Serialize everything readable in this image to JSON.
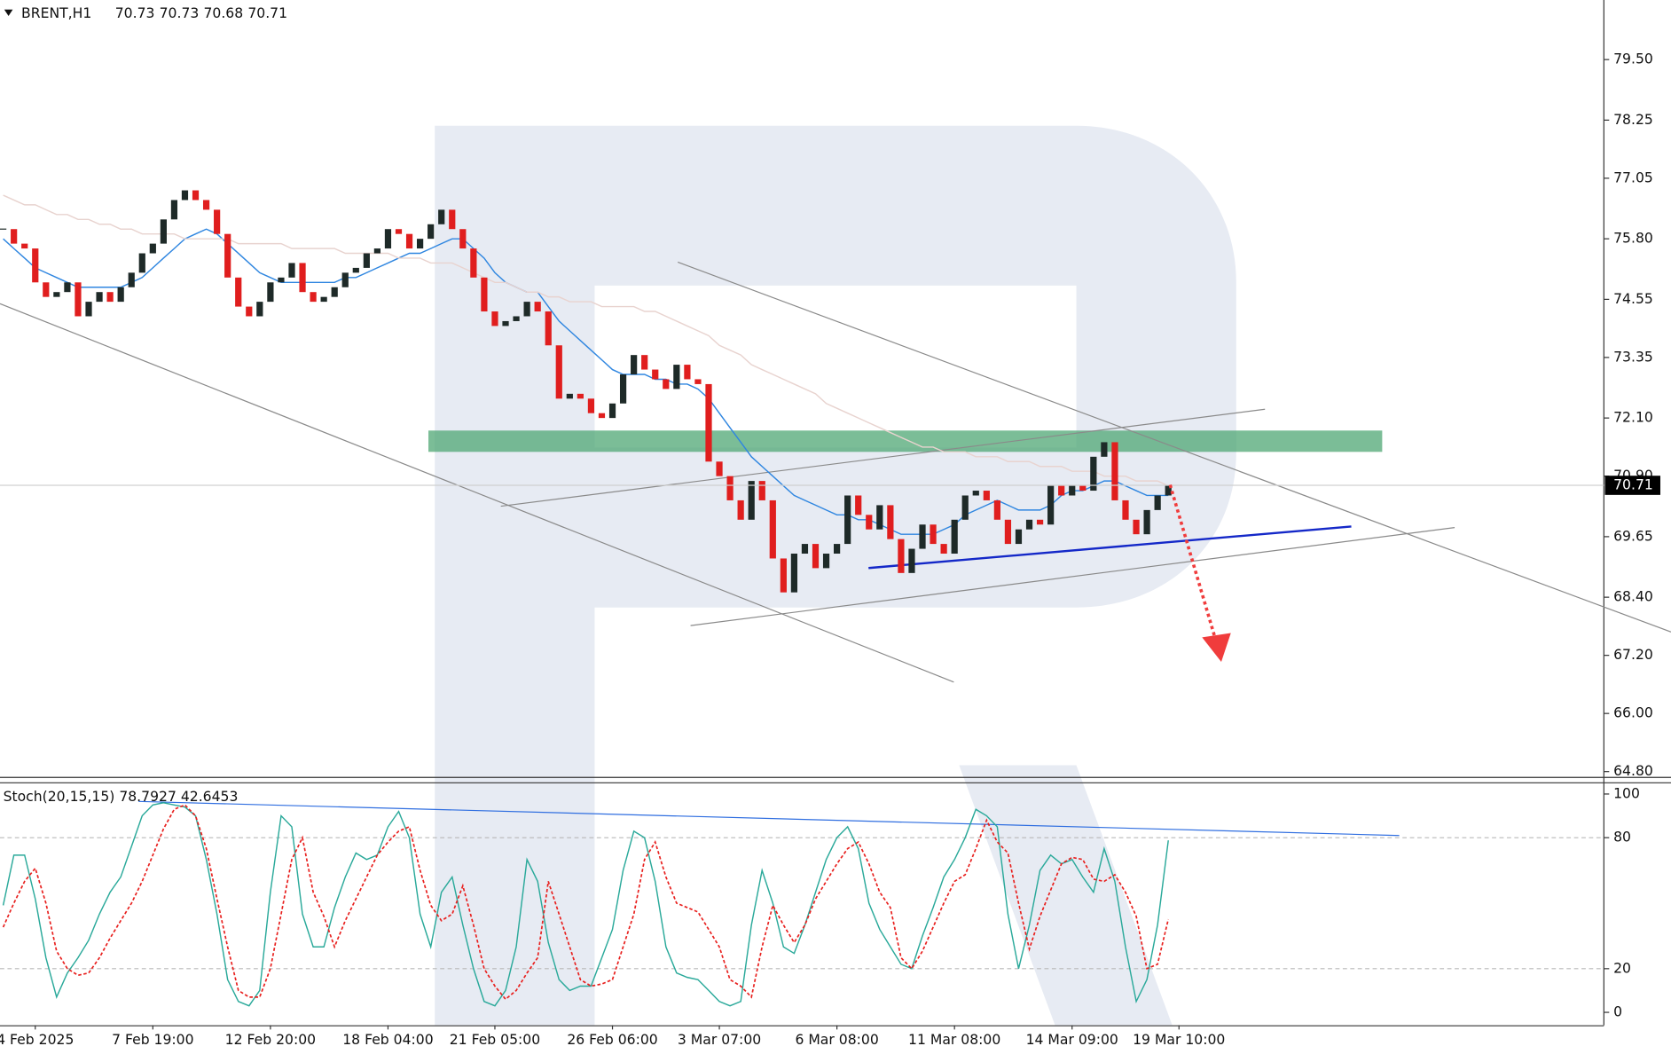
{
  "chart_data": [
    {
      "type": "candlestick",
      "symbol": "BRENT,H1",
      "ohlc": [
        70.73,
        70.73,
        70.68,
        70.71
      ],
      "up_color": "#1e2a28",
      "down_color": "#e01e1e",
      "values": [
        76.0,
        75.7,
        75.6,
        74.9,
        74.6,
        74.7,
        74.9,
        74.2,
        74.5,
        74.7,
        74.5,
        74.8,
        75.1,
        75.5,
        75.7,
        76.2,
        76.6,
        76.8,
        76.6,
        76.4,
        75.9,
        75.0,
        74.4,
        74.2,
        74.5,
        74.9,
        75.0,
        75.3,
        74.7,
        74.5,
        74.6,
        74.8,
        75.1,
        75.2,
        75.5,
        75.6,
        76.0,
        75.9,
        75.6,
        75.8,
        76.1,
        76.4,
        76.0,
        75.6,
        75.0,
        74.3,
        74.0,
        74.1,
        74.2,
        74.5,
        74.3,
        73.6,
        72.5,
        72.6,
        72.5,
        72.2,
        72.1,
        72.4,
        73.0,
        73.4,
        73.1,
        72.9,
        72.7,
        73.2,
        72.9,
        72.8,
        71.2,
        70.9,
        70.4,
        70.0,
        70.8,
        70.4,
        69.2,
        68.5,
        69.3,
        69.5,
        69.0,
        69.3,
        69.5,
        70.5,
        70.1,
        69.8,
        70.3,
        69.6,
        68.9,
        69.4,
        69.9,
        69.5,
        69.3,
        70.0,
        70.5,
        70.6,
        70.4,
        70.0,
        69.5,
        69.8,
        70.0,
        69.9,
        70.7,
        70.5,
        70.7,
        70.6,
        71.3,
        71.6,
        70.4,
        70.0,
        69.7,
        70.2,
        70.5,
        70.71,
        null
      ],
      "lines": [
        {
          "color": "#2f86e0",
          "values": [
            75.8,
            75.6,
            75.4,
            75.2,
            75.1,
            75.0,
            74.9,
            74.8,
            74.8,
            74.8,
            74.8,
            74.8,
            74.9,
            75.0,
            75.2,
            75.4,
            75.6,
            75.8,
            75.9,
            76.0,
            75.9,
            75.7,
            75.5,
            75.3,
            75.1,
            75.0,
            74.9,
            74.9,
            74.9,
            74.9,
            74.9,
            74.9,
            75.0,
            75.0,
            75.1,
            75.2,
            75.3,
            75.4,
            75.5,
            75.5,
            75.6,
            75.7,
            75.8,
            75.8,
            75.6,
            75.4,
            75.1,
            74.9,
            74.8,
            74.7,
            74.7,
            74.4,
            74.1,
            73.9,
            73.7,
            73.5,
            73.3,
            73.1,
            73.0,
            73.0,
            73.0,
            72.9,
            72.9,
            72.8,
            72.8,
            72.7,
            72.5,
            72.2,
            71.9,
            71.6,
            71.3,
            71.1,
            70.9,
            70.7,
            70.5,
            70.4,
            70.3,
            70.2,
            70.1,
            70.1,
            70.0,
            70.0,
            69.9,
            69.8,
            69.7,
            69.7,
            69.7,
            69.7,
            69.8,
            69.9,
            70.1,
            70.2,
            70.3,
            70.4,
            70.3,
            70.2,
            70.2,
            70.2,
            70.3,
            70.5,
            70.6,
            70.6,
            70.7,
            70.8,
            70.8,
            70.7,
            70.6,
            70.5,
            70.5,
            70.5,
            null
          ]
        },
        {
          "color": "#e8d3cf",
          "values": [
            76.7,
            76.6,
            76.5,
            76.5,
            76.4,
            76.3,
            76.3,
            76.2,
            76.2,
            76.1,
            76.1,
            76.0,
            76.0,
            75.9,
            75.9,
            75.9,
            75.9,
            75.8,
            75.8,
            75.8,
            75.8,
            75.8,
            75.7,
            75.7,
            75.7,
            75.7,
            75.7,
            75.6,
            75.6,
            75.6,
            75.6,
            75.6,
            75.5,
            75.5,
            75.5,
            75.5,
            75.5,
            75.4,
            75.4,
            75.4,
            75.3,
            75.3,
            75.3,
            75.2,
            75.1,
            75.0,
            74.9,
            74.9,
            74.8,
            74.7,
            74.7,
            74.6,
            74.6,
            74.5,
            74.5,
            74.5,
            74.4,
            74.4,
            74.4,
            74.4,
            74.3,
            74.3,
            74.2,
            74.1,
            74.0,
            73.9,
            73.8,
            73.6,
            73.5,
            73.4,
            73.2,
            73.1,
            73.0,
            72.9,
            72.8,
            72.7,
            72.6,
            72.4,
            72.3,
            72.2,
            72.1,
            72.0,
            71.9,
            71.8,
            71.7,
            71.6,
            71.5,
            71.5,
            71.4,
            71.4,
            71.4,
            71.3,
            71.3,
            71.3,
            71.2,
            71.2,
            71.2,
            71.1,
            71.1,
            71.1,
            71.0,
            71.0,
            71.0,
            70.9,
            70.9,
            70.9,
            70.8,
            70.8,
            70.8,
            70.7,
            null
          ]
        }
      ],
      "last_price": 70.71,
      "ylim": [
        64.69,
        80.73
      ],
      "yticks": [
        {
          "value": 79.5,
          "label": "79.50"
        },
        78.25,
        77.05,
        {
          "value": 75.8,
          "label": "75.80"
        },
        74.55,
        73.35,
        {
          "value": 72.1,
          "label": "72.10"
        },
        {
          "value": 70.9,
          "label": "70.90"
        },
        69.65,
        {
          "value": 68.4,
          "label": "68.40"
        },
        {
          "value": 67.2,
          "label": "67.20"
        },
        {
          "value": 66,
          "label": "66.00"
        },
        {
          "value": 64.8,
          "label": "64.80"
        }
      ]
    },
    {
      "type": "line",
      "title": "Stoch(20,15,15) 78.7927 42.6453",
      "categories": [
        null,
        null,
        null,
        "4 Feb 2025",
        null,
        null,
        null,
        null,
        null,
        null,
        null,
        null,
        null,
        null,
        "7 Feb 19:00",
        null,
        null,
        null,
        null,
        null,
        null,
        null,
        null,
        null,
        null,
        "12 Feb 20:00",
        null,
        null,
        null,
        null,
        null,
        null,
        null,
        null,
        null,
        null,
        "18 Feb 04:00",
        null,
        null,
        null,
        null,
        null,
        null,
        null,
        null,
        null,
        "21 Feb 05:00",
        null,
        null,
        null,
        null,
        null,
        null,
        null,
        null,
        null,
        null,
        "26 Feb 06:00",
        null,
        null,
        null,
        null,
        null,
        null,
        null,
        null,
        null,
        "3 Mar 07:00",
        null,
        null,
        null,
        null,
        null,
        null,
        null,
        null,
        null,
        null,
        "6 Mar 08:00",
        null,
        null,
        null,
        null,
        null,
        null,
        null,
        null,
        null,
        null,
        "11 Mar 08:00",
        null,
        null,
        null,
        null,
        null,
        null,
        null,
        null,
        null,
        null,
        "14 Mar 09:00",
        null,
        null,
        null,
        null,
        null,
        null,
        null,
        null,
        null,
        "19 Mar 10:00"
      ],
      "series": [
        {
          "color": "#2aa99a",
          "dash": false,
          "values": [
            49,
            72,
            72,
            52,
            25,
            7,
            18,
            25,
            33,
            45,
            55,
            62,
            76,
            90,
            95,
            96,
            95,
            94,
            90,
            70,
            45,
            15,
            5,
            3,
            10,
            55,
            90,
            85,
            45,
            30,
            30,
            48,
            62,
            73,
            70,
            72,
            85,
            92,
            80,
            45,
            30,
            55,
            62,
            40,
            20,
            5,
            3,
            10,
            30,
            70,
            60,
            32,
            15,
            10,
            12,
            12,
            25,
            38,
            65,
            83,
            80,
            60,
            30,
            18,
            16,
            15,
            10,
            5,
            3,
            5,
            40,
            65,
            50,
            30,
            27,
            40,
            55,
            70,
            80,
            85,
            75,
            50,
            38,
            30,
            22,
            20,
            35,
            48,
            62,
            70,
            80,
            93,
            90,
            85,
            45,
            20,
            40,
            65,
            72,
            68,
            70,
            62,
            55,
            75,
            60,
            30,
            5,
            15,
            40,
            78.79,
            null
          ]
        },
        {
          "color": "#e8201e",
          "dash": true,
          "values": [
            39,
            50,
            60,
            66,
            50,
            28,
            20,
            17,
            18,
            25,
            34,
            42,
            50,
            60,
            72,
            84,
            93,
            95,
            90,
            75,
            52,
            30,
            10,
            7,
            7,
            20,
            45,
            70,
            80,
            55,
            44,
            30,
            42,
            52,
            62,
            72,
            78,
            83,
            85,
            65,
            49,
            42,
            45,
            58,
            40,
            20,
            12,
            6,
            10,
            18,
            25,
            60,
            45,
            30,
            15,
            12,
            13,
            15,
            30,
            45,
            70,
            78,
            62,
            50,
            48,
            46,
            38,
            30,
            15,
            12,
            7,
            30,
            49,
            40,
            32,
            40,
            52,
            60,
            68,
            75,
            78,
            68,
            55,
            48,
            25,
            20,
            28,
            39,
            50,
            60,
            63,
            75,
            88,
            78,
            73,
            50,
            29,
            44,
            56,
            68,
            71,
            70,
            61,
            60,
            63,
            55,
            44,
            20,
            22,
            42.65,
            null
          ]
        }
      ],
      "levels": [
        80,
        20
      ],
      "ylim": [
        -5.9,
        104.9
      ],
      "yticks": [
        100,
        80,
        20,
        0
      ]
    }
  ]
}
